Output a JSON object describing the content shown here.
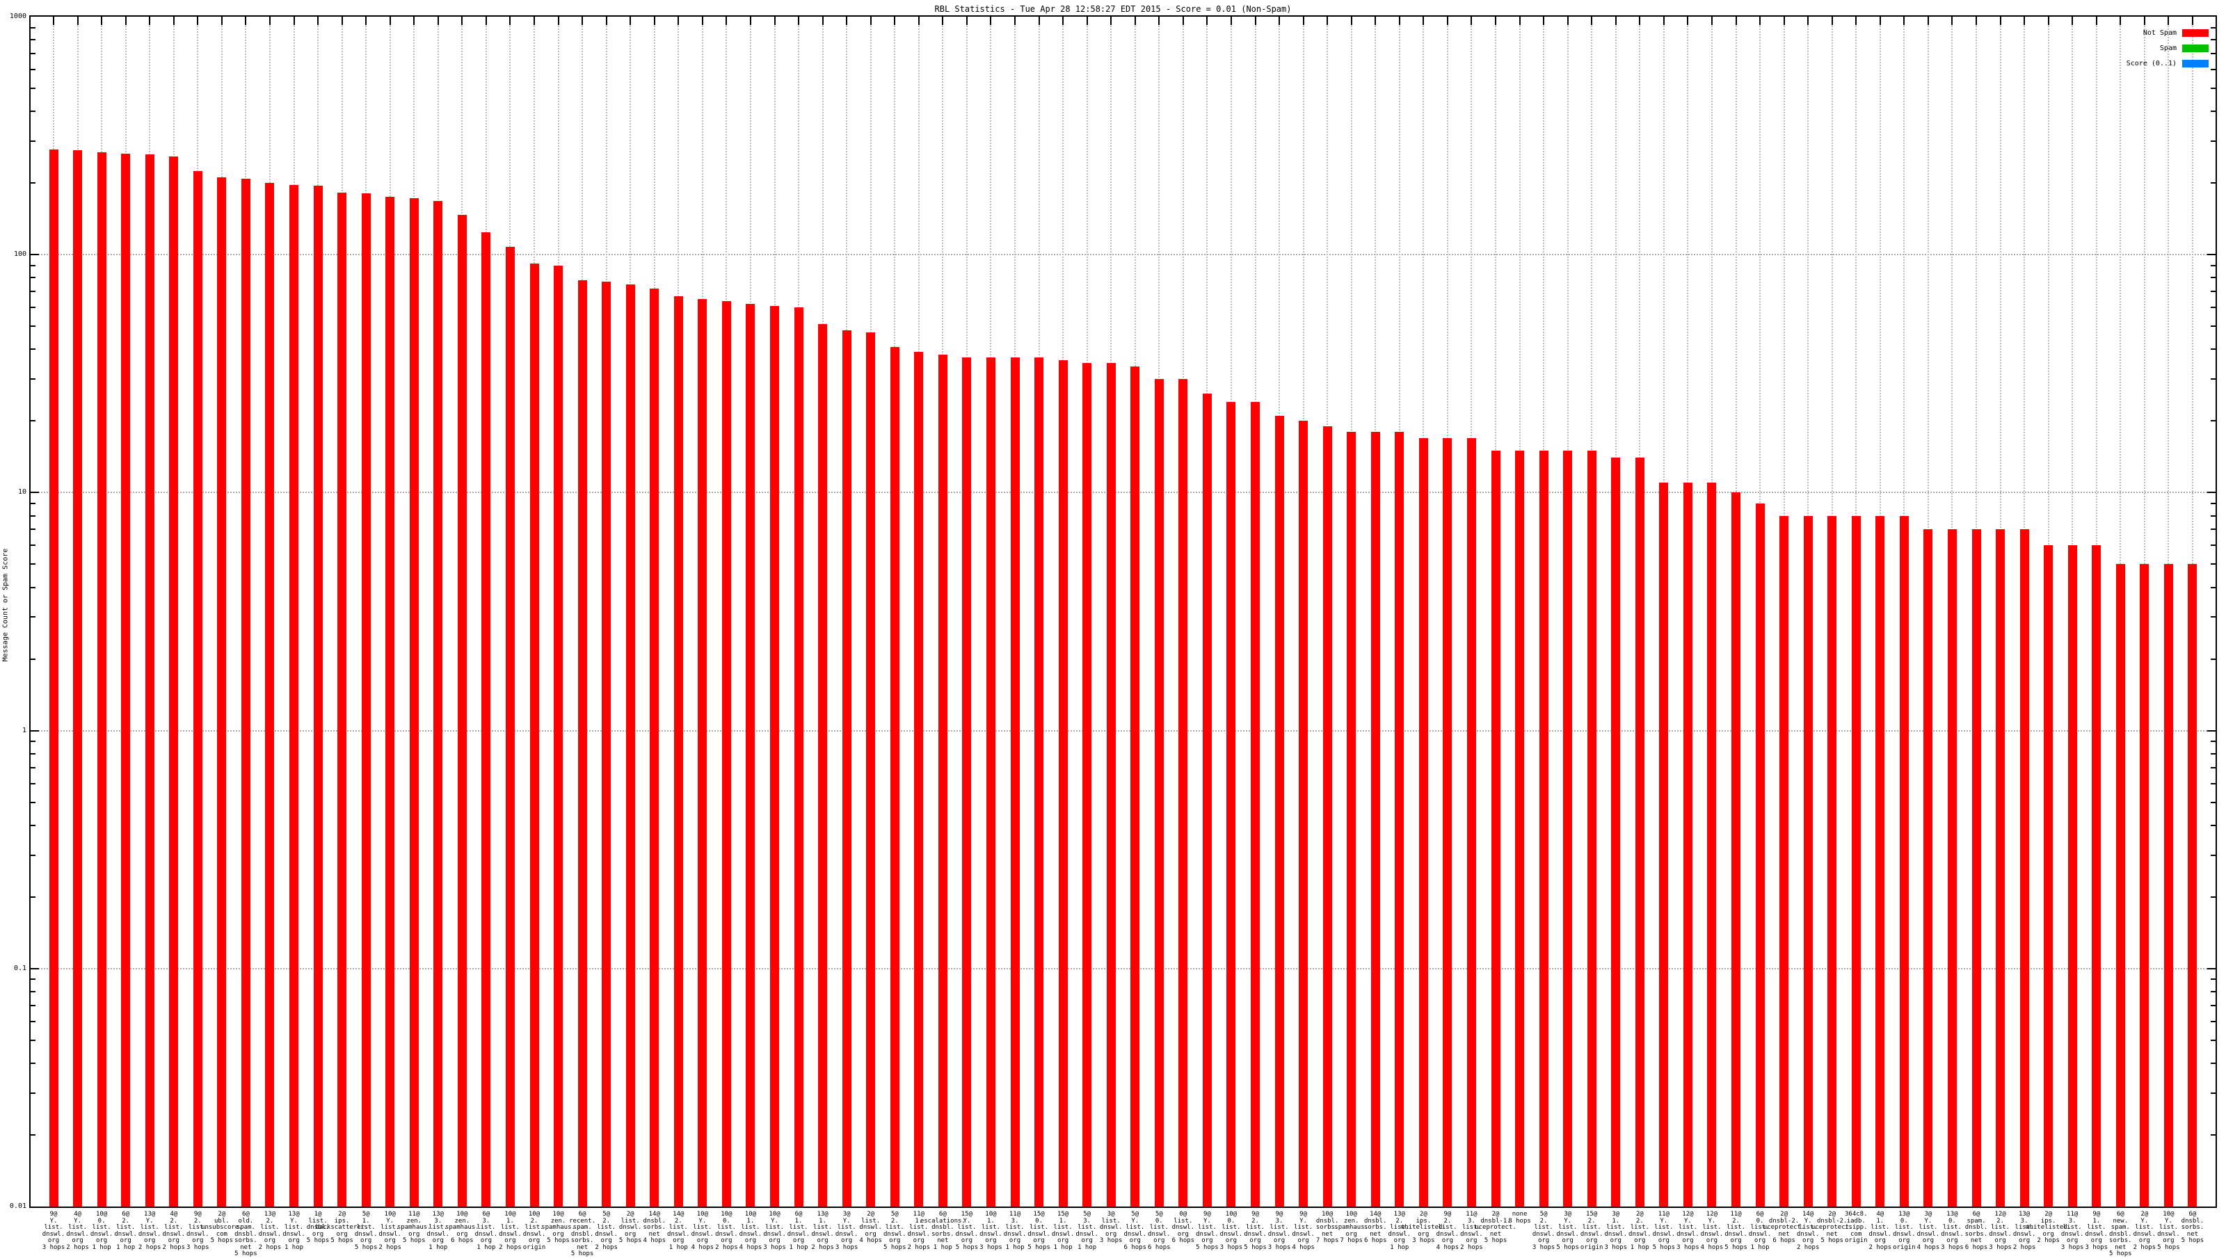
{
  "chart_data": {
    "type": "bar",
    "title": "RBL Statistics - Tue Apr 28 12:58:27 EDT 2015 - Score = 0.01 (Non-Spam)",
    "ylabel": "Message Count or Spam Score",
    "xlabel": "",
    "y_scale": "log",
    "ylim": [
      0.01,
      1000
    ],
    "y_ticks": [
      "1000",
      "100",
      "10",
      "1",
      "0.1",
      "0.01"
    ],
    "grid": true,
    "legend_position": "top-right-inside",
    "legend": [
      {
        "label": "Not Spam",
        "color": "#ff0000"
      },
      {
        "label": "Spam",
        "color": "#00c000"
      },
      {
        "label": "Score (0..1)",
        "color": "#0080ff"
      }
    ],
    "bar_color": "#ff0000",
    "categories": [
      "9@Y.list.dnswl.org 3 hops",
      "4@Y.list.dnswl.org 2 hops",
      "10@0.list.dnswl.org 1 hop",
      "6@2.list.dnswl.org 1 hop",
      "13@Y.list.dnswl.org 2 hops",
      "4@2.list.dnswl.org 2 hops",
      "9@2.list.dnswl.org 3 hops",
      "2@ubl.unsubscore.com 5 hops",
      "6@old.spam.dnsbl.sorbs.net 5 hops",
      "13@2.list.dnswl.org 2 hops",
      "13@Y.list.dnswl.org 1 hop",
      "1@list.dnsbl.org 5 hops",
      "2@ips.backscatterer.org 5 hops",
      "5@1.list.dnswl.org 5 hops",
      "10@Y.list.dnswl.org 2 hops",
      "11@zen.spamhaus.org 5 hops",
      "13@3.list.dnswl.org 1 hop",
      "10@zen.spamhaus.org 6 hops",
      "6@3.list.dnswl.org 1 hop",
      "10@1.list.dnswl.org 2 hops",
      "10@2.list.dnswl.org origin",
      "10@zen.spamhaus.org 5 hops",
      "6@recent.spam.dnsbl.sorbs.net 5 hops",
      "5@2.list.dnswl.org 2 hops",
      "2@list.dnswl.org 5 hops",
      "14@dnsbl.sorbs.net 4 hops",
      "14@2.list.dnswl.org 1 hop",
      "10@Y.list.dnswl.org 4 hops",
      "10@0.list.dnswl.org 2 hops",
      "10@1.list.dnswl.org 4 hops",
      "10@Y.list.dnswl.org 3 hops",
      "6@1.list.dnswl.org 1 hop",
      "13@1.list.dnswl.org 2 hops",
      "3@Y.list.dnswl.org 3 hops",
      "2@list.dnswl.org 4 hops",
      "5@2.list.dnswl.org 5 hops",
      "11@1.list.dnswl.org 2 hops",
      "6@escalations.dnsbl.sorbs.net 1 hop",
      "15@Y.list.dnswl.org 5 hops",
      "10@1.list.dnswl.org 3 hops",
      "11@3.list.dnswl.org 1 hop",
      "15@0.list.dnswl.org 5 hops",
      "15@1.list.dnswl.org 1 hop",
      "5@3.list.dnswl.org 1 hop",
      "3@list.dnswl.org 3 hops",
      "5@Y.list.dnswl.org 6 hops",
      "5@0.list.dnswl.org 6 hops",
      "0@list.dnswl.org 6 hops",
      "9@Y.list.dnswl.org 5 hops",
      "10@0.list.dnswl.org 3 hops",
      "9@2.list.dnswl.org 5 hops",
      "9@3.list.dnswl.org 3 hops",
      "9@Y.list.dnswl.org 4 hops",
      "10@dnsbl.sorbs.net 7 hops",
      "10@zen.spamhaus.org 7 hops",
      "14@dnsbl.sorbs.net 6 hops",
      "13@2.list.dnswl.org 1 hop",
      "2@ips.whitelisted.org 3 hops",
      "9@2.list.dnswl.org 4 hops",
      "11@3.list.dnswl.org 2 hops",
      "2@dnsbl-1.uceprotect.net 5 hops",
      "none 8 hops",
      "5@2.list.dnswl.org 3 hops",
      "3@Y.list.dnswl.org 5 hops",
      "15@2.list.dnswl.org origin",
      "3@1.list.dnswl.org 3 hops",
      "2@2.list.dnswl.org 1 hop",
      "11@Y.list.dnswl.org 5 hops",
      "12@Y.list.dnswl.org 3 hops",
      "12@Y.list.dnswl.org 4 hops",
      "11@2.list.dnswl.org 5 hops",
      "6@0.list.dnswl.org 1 hop",
      "2@dnsbl-2.uceprotect.net 6 hops",
      "14@Y.list.dnswl.org 2 hops",
      "2@dnsbl-2.uceprotect.net 5 hops",
      "364c8.iadb.isipp.com origin",
      "4@1.list.dnswl.org 2 hops",
      "13@0.list.dnswl.org origin",
      "3@Y.list.dnswl.org 4 hops",
      "13@0.list.dnswl.org 3 hops",
      "6@spam.dnsbl.sorbs.net 6 hops",
      "12@2.list.dnswl.org 3 hops",
      "13@3.list.dnswl.org 2 hops",
      "2@ips.whitelisted.org 2 hops",
      "11@3.list.dnswl.org 3 hops",
      "9@1.list.dnswl.org 3 hops",
      "6@new.spam.dnsbl.sorbs.net 5 hops",
      "2@Y.list.dnswl.org 2 hops",
      "10@Y.list.dnswl.org 5 hops",
      "6@dnsbl.sorbs.net 5 hops"
    ],
    "values": [
      276,
      274,
      269,
      265,
      264,
      258,
      225,
      211,
      209,
      200,
      196,
      195,
      182,
      181,
      175,
      173,
      168,
      147,
      124,
      108,
      92,
      90,
      78,
      77,
      75,
      72,
      67,
      65,
      64,
      62,
      61,
      60,
      51,
      48,
      47,
      41,
      39,
      38,
      37,
      37,
      37,
      37,
      36,
      35,
      35,
      34,
      30,
      30,
      26,
      24,
      24,
      21,
      20,
      19,
      18,
      18,
      18,
      17,
      17,
      17,
      15,
      15,
      15,
      15,
      15,
      14,
      14,
      11,
      11,
      11,
      10,
      9,
      8,
      8,
      8,
      8,
      8,
      8,
      7,
      7,
      7,
      7,
      7,
      6,
      6,
      6,
      5,
      5,
      5,
      5
    ]
  }
}
